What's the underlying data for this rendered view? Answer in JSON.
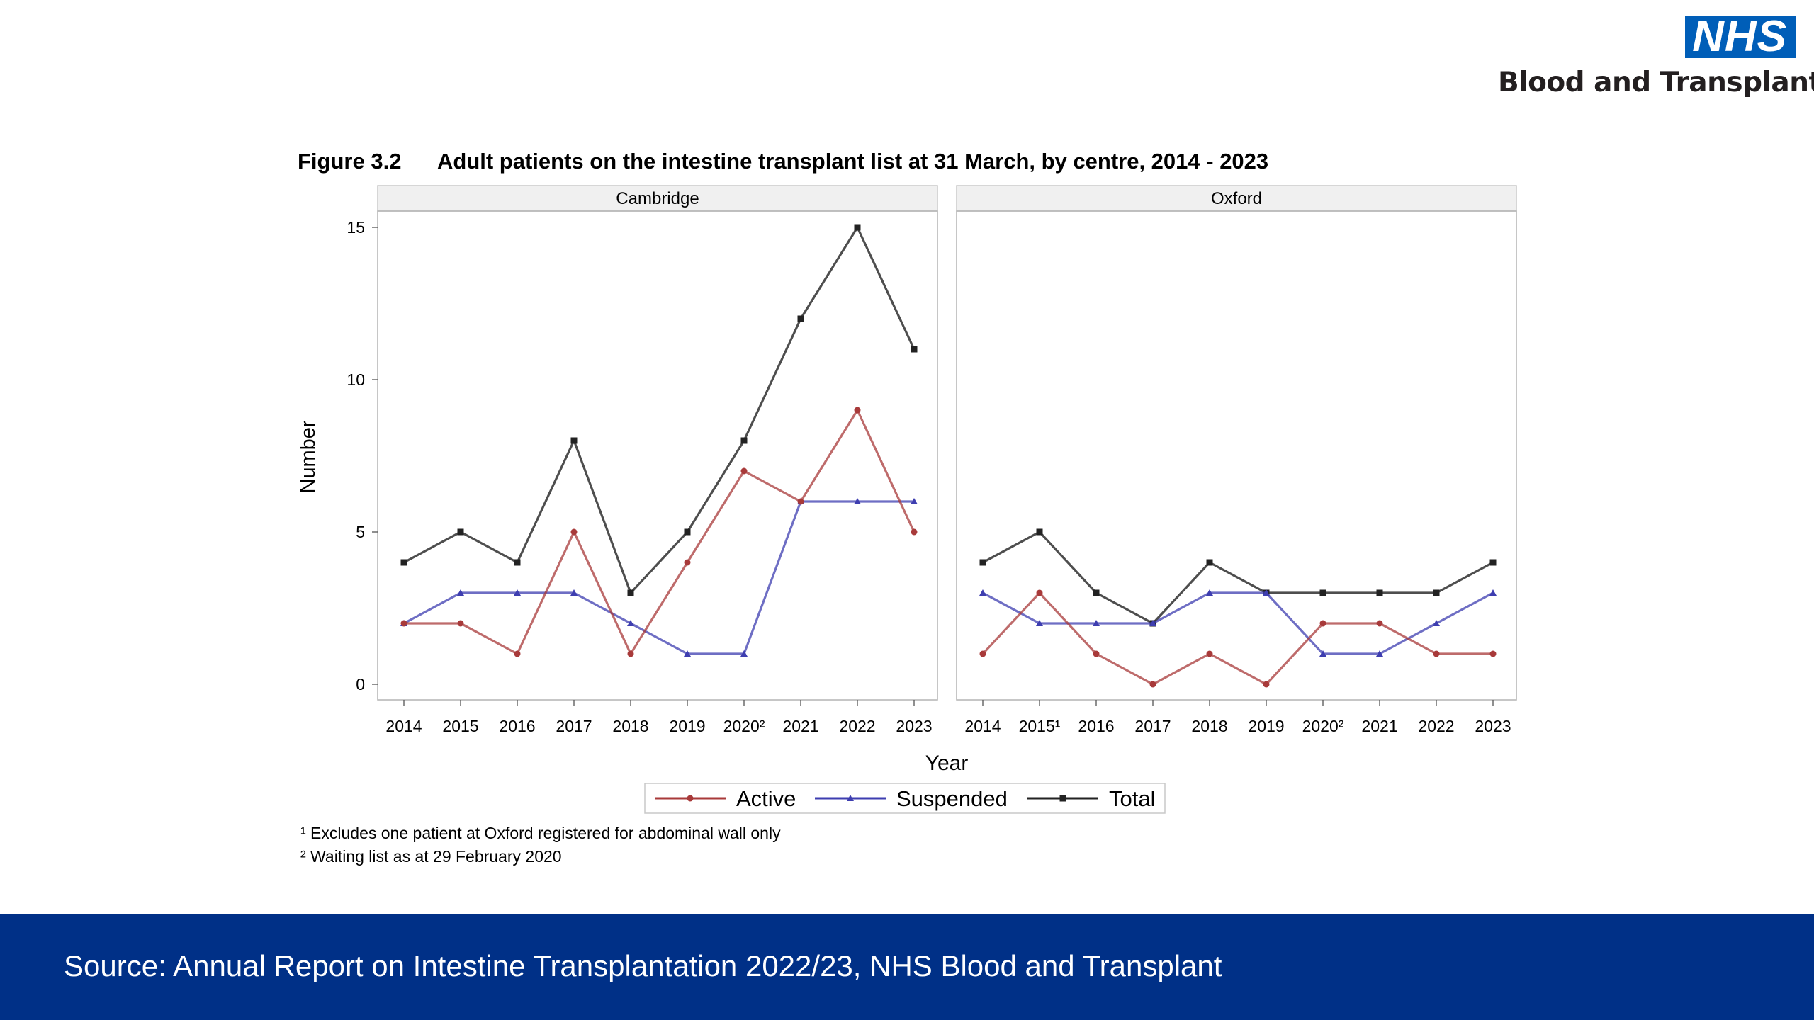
{
  "logo": {
    "badge": "NHS",
    "text": "Blood and Transplant"
  },
  "figure": {
    "number": "Figure 3.2",
    "title": "Adult patients on the intestine transplant list at 31 March, by centre, 2014 - 2023"
  },
  "footnotes": [
    "¹ Excludes one patient at Oxford registered for abdominal wall only",
    "² Waiting list as at 29 February 2020"
  ],
  "footer": {
    "source": "Source: Annual Report on Intestine Transplantation 2022/23, NHS Blood and Transplant"
  },
  "colors": {
    "active": "#a83a3a",
    "suspended": "#3e3eb0",
    "total": "#222222",
    "footer_bg": "#003087",
    "nhs_blue": "#005EB8"
  },
  "chart_data": [
    {
      "type": "line",
      "panel": "Cambridge",
      "categories": [
        "2014",
        "2015",
        "2016",
        "2017",
        "2018",
        "2019",
        "2020²",
        "2021",
        "2022",
        "2023"
      ],
      "xlabel": "Year",
      "ylabel": "Number",
      "ylim": [
        0,
        15
      ],
      "yticks": [
        0,
        5,
        10,
        15
      ],
      "grid": false,
      "legend": "bottom-center",
      "series": [
        {
          "name": "Active",
          "marker": "circle",
          "values": [
            2,
            2,
            1,
            5,
            1,
            4,
            7,
            6,
            9,
            5
          ]
        },
        {
          "name": "Suspended",
          "marker": "triangle",
          "values": [
            2,
            3,
            3,
            3,
            2,
            1,
            1,
            6,
            6,
            6
          ]
        },
        {
          "name": "Total",
          "marker": "square",
          "values": [
            4,
            5,
            4,
            8,
            3,
            5,
            8,
            12,
            15,
            11
          ]
        }
      ]
    },
    {
      "type": "line",
      "panel": "Oxford",
      "categories": [
        "2014",
        "2015¹",
        "2016",
        "2017",
        "2018",
        "2019",
        "2020²",
        "2021",
        "2022",
        "2023"
      ],
      "xlabel": "Year",
      "ylabel": "Number",
      "ylim": [
        0,
        15
      ],
      "yticks": [
        0,
        5,
        10,
        15
      ],
      "grid": false,
      "legend": "bottom-center",
      "series": [
        {
          "name": "Active",
          "marker": "circle",
          "values": [
            1,
            3,
            1,
            0,
            1,
            0,
            2,
            2,
            1,
            1
          ]
        },
        {
          "name": "Suspended",
          "marker": "triangle",
          "values": [
            3,
            2,
            2,
            2,
            3,
            3,
            1,
            1,
            2,
            3
          ]
        },
        {
          "name": "Total",
          "marker": "square",
          "values": [
            4,
            5,
            3,
            2,
            4,
            3,
            3,
            3,
            3,
            4
          ]
        }
      ]
    }
  ]
}
